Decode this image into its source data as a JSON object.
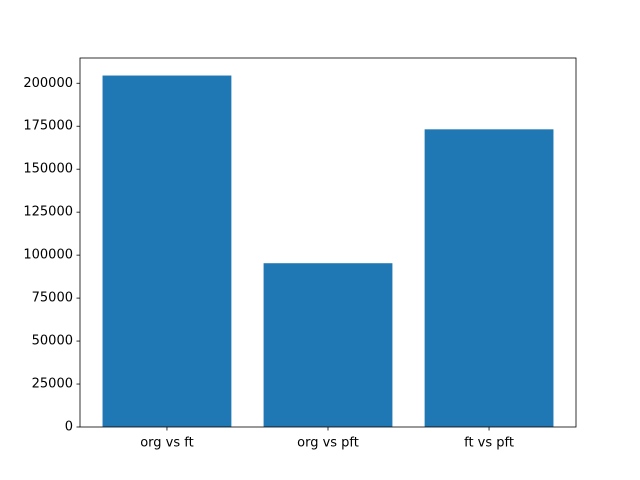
{
  "chart_data": {
    "type": "bar",
    "categories": [
      "org vs ft",
      "org vs pft",
      "ft vs pft"
    ],
    "values": [
      204500,
      95300,
      173200
    ],
    "color": "#1f77b4",
    "ylim": [
      0,
      214700
    ],
    "yticks": [
      0,
      25000,
      50000,
      75000,
      100000,
      125000,
      150000,
      175000,
      200000
    ]
  }
}
